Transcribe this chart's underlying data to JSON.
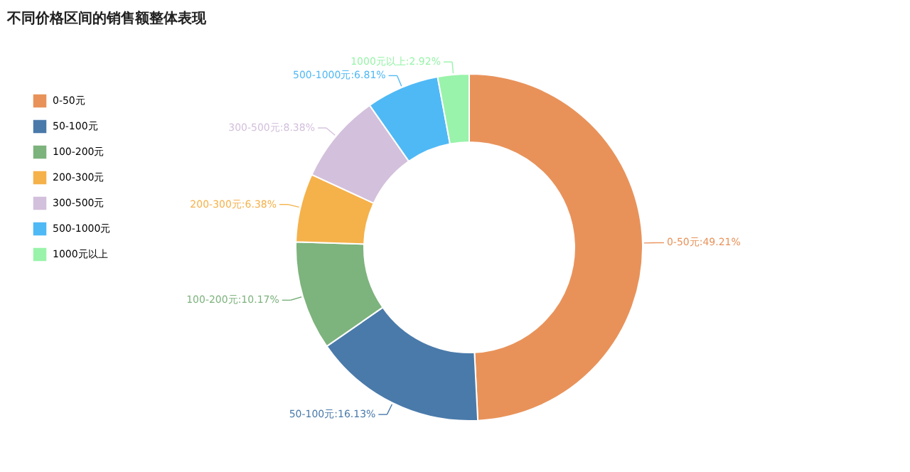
{
  "chart_data": {
    "type": "donut",
    "title": "不同价格区间的销售额整体表现",
    "categories": [
      "0-50元",
      "50-100元",
      "100-200元",
      "200-300元",
      "300-500元",
      "500-1000元",
      "1000元以上"
    ],
    "values": [
      49.21,
      16.13,
      10.17,
      6.38,
      8.38,
      6.81,
      2.92
    ],
    "colors": [
      "#e8925a",
      "#4a7aaa",
      "#7db37d",
      "#f5b14a",
      "#d3c0dc",
      "#4fb9f5",
      "#99f3aa"
    ],
    "value_labels": [
      "0-50元:49.21%",
      "50-100元:16.13%",
      "100-200元:10.17%",
      "200-300元:6.38%",
      "300-500元:8.38%",
      "500-1000元:6.81%",
      "1000元以上:2.92%"
    ],
    "legend": "top left"
  }
}
